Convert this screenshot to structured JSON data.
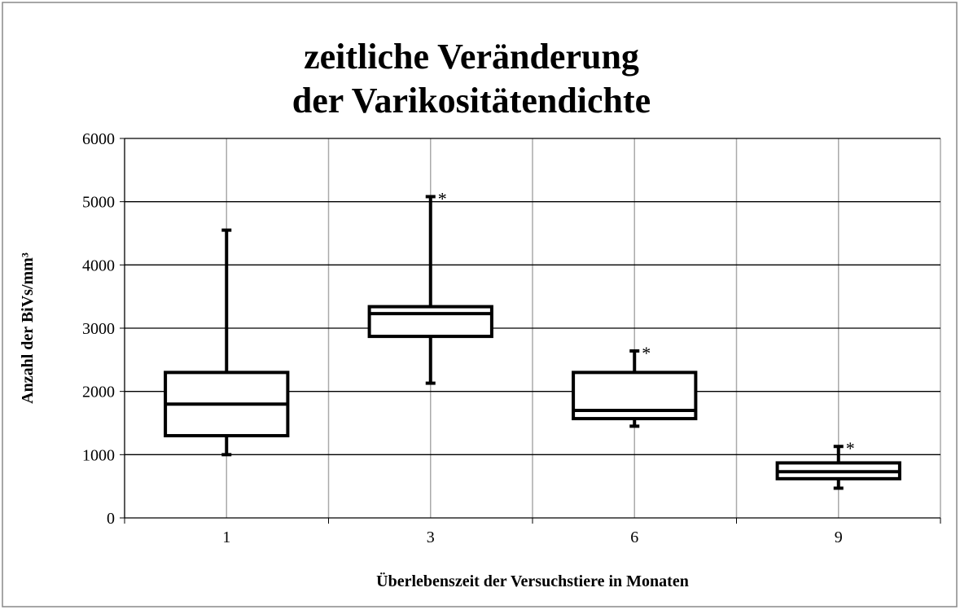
{
  "chart_data": {
    "type": "box",
    "title": [
      "zeitliche Veränderung",
      "der Varikositätendichte"
    ],
    "x_label": "Überlebenszeit der Versuchstiere in Monaten",
    "y_label": "Anzahl der BiVs/mm³",
    "categories": [
      "1",
      "3",
      "6",
      "9"
    ],
    "boxes": [
      {
        "whislo": 1000,
        "q1": 1300,
        "med": 1800,
        "q3": 2300,
        "whishi": 4550
      },
      {
        "whislo": 2130,
        "q1": 2870,
        "med": 3230,
        "q3": 3340,
        "whishi": 5080
      },
      {
        "whislo": 1450,
        "q1": 1570,
        "med": 1700,
        "q3": 2300,
        "whishi": 2640
      },
      {
        "whislo": 470,
        "q1": 620,
        "med": 730,
        "q3": 870,
        "whishi": 1130
      }
    ],
    "annotations": [
      {
        "text": "*",
        "category": "3",
        "y": 5080
      },
      {
        "text": "*",
        "category": "6",
        "y": 2640
      },
      {
        "text": "*",
        "category": "9",
        "y": 1130
      }
    ],
    "color": "#000000",
    "ylim": [
      0,
      6000
    ],
    "yticks": [
      0,
      1000,
      2000,
      3000,
      4000,
      5000,
      6000
    ],
    "grid": true
  }
}
